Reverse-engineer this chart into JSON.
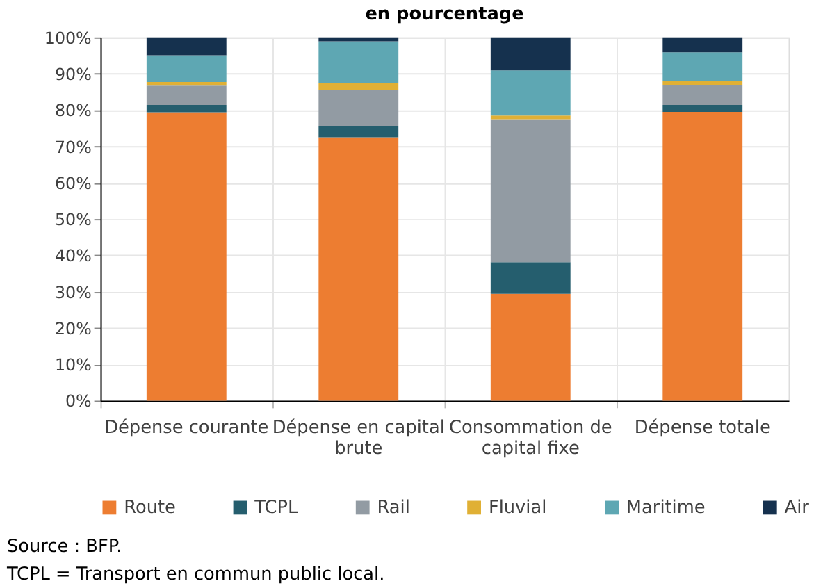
{
  "chart_data": {
    "type": "bar",
    "stacked": true,
    "title": "en pourcentage",
    "categories": [
      "Dépense courante",
      "Dépense en capital brute",
      "Consommation de capital fixe",
      "Dépense totale"
    ],
    "series": [
      {
        "name": "Route",
        "color": "#ed7d31",
        "values": [
          79.4,
          72.5,
          29.4,
          79.5
        ]
      },
      {
        "name": "TCPL",
        "color": "#255e6e",
        "values": [
          2.0,
          3.1,
          8.7,
          1.9
        ]
      },
      {
        "name": "Rail",
        "color": "#929ba3",
        "values": [
          5.3,
          10.0,
          39.4,
          5.4
        ]
      },
      {
        "name": "Fluvial",
        "color": "#e0b035",
        "values": [
          1.0,
          1.9,
          1.0,
          1.2
        ]
      },
      {
        "name": "Maritime",
        "color": "#5ea7b3",
        "values": [
          7.4,
          11.4,
          12.4,
          7.9
        ]
      },
      {
        "name": "Air",
        "color": "#15314e",
        "values": [
          4.9,
          1.1,
          9.1,
          4.1
        ]
      }
    ],
    "ylim": [
      0,
      100
    ],
    "yticks": [
      {
        "value": 0,
        "label": "0%"
      },
      {
        "value": 10,
        "label": "10%"
      },
      {
        "value": 20,
        "label": "20%"
      },
      {
        "value": 30,
        "label": "30%"
      },
      {
        "value": 40,
        "label": "40%"
      },
      {
        "value": 50,
        "label": "50%"
      },
      {
        "value": 60,
        "label": "60%"
      },
      {
        "value": 70,
        "label": "70%"
      },
      {
        "value": 80,
        "label": "80%"
      },
      {
        "value": 90,
        "label": "90%"
      },
      {
        "value": 100,
        "label": "100%"
      }
    ],
    "grid": true,
    "legend": "bottom",
    "annotations": [
      "Source : BFP.",
      "TCPL = Transport en commun public local."
    ]
  }
}
